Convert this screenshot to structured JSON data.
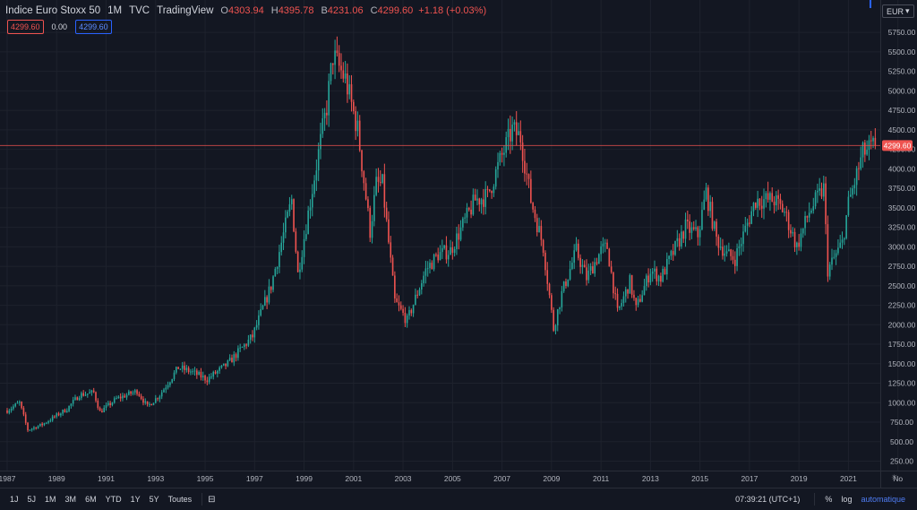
{
  "legend": {
    "symbol": "Indice Euro Stoxx 50",
    "interval": "1M",
    "exchange": "TVC",
    "source": "TradingView",
    "open_label": "O",
    "open": "4303.94",
    "high_label": "H",
    "high": "4395.78",
    "low_label": "B",
    "low": "4231.06",
    "close_label": "C",
    "close": "4299.60",
    "change": "+1.18 (+0.03%)"
  },
  "badges": {
    "bid": "4299.60",
    "spread": "0.00",
    "ask": "4299.60"
  },
  "currency": "EUR",
  "currency_arrow": "▾",
  "price_axis": {
    "labels": [
      "5750.00",
      "5500.00",
      "5250.00",
      "5000.00",
      "4750.00",
      "4500.00",
      "4250.00",
      "4000.00",
      "3750.00",
      "3500.00",
      "3250.00",
      "3000.00",
      "2750.00",
      "2500.00",
      "2250.00",
      "2000.00",
      "1750.00",
      "1500.00",
      "1250.00",
      "1000.00",
      "750.00",
      "500.00",
      "250.00"
    ],
    "last_price_label": "4299.60"
  },
  "time_axis": {
    "labels": [
      "1987",
      "1989",
      "1991",
      "1993",
      "1995",
      "1997",
      "1999",
      "2001",
      "2003",
      "2005",
      "2007",
      "2009",
      "2011",
      "2013",
      "2015",
      "2017",
      "2019",
      "2021",
      "No"
    ]
  },
  "bottom_bar": {
    "ranges": [
      "1J",
      "5J",
      "1M",
      "3M",
      "6M",
      "YTD",
      "1Y",
      "5Y",
      "Toutes"
    ],
    "calendar_icon": "⊟",
    "time": "07:39:21 (UTC+1)",
    "percent": "%",
    "log": "log",
    "auto": "automatique"
  },
  "settings_icon": "☼",
  "colors": {
    "background": "#131722",
    "up": "#26a69a",
    "down": "#ef5350",
    "grid": "#1e222d",
    "accent": "#2962ff"
  },
  "chart_data": {
    "type": "candlestick",
    "interval": "1M",
    "ylim": [
      0,
      5900
    ],
    "xlim": [
      "1987-01",
      "2022-09"
    ],
    "last_price": 4299.6,
    "grid": true,
    "anchors": [
      [
        "1987-01",
        900
      ],
      [
        "1987-07",
        1000
      ],
      [
        "1987-11",
        650
      ],
      [
        "1988-06",
        720
      ],
      [
        "1989-06",
        920
      ],
      [
        "1989-12",
        1100
      ],
      [
        "1990-07",
        1130
      ],
      [
        "1990-10",
        880
      ],
      [
        "1991-06",
        1050
      ],
      [
        "1992-04",
        1150
      ],
      [
        "1992-09",
        950
      ],
      [
        "1993-03",
        1100
      ],
      [
        "1993-12",
        1450
      ],
      [
        "1994-06",
        1400
      ],
      [
        "1995-02",
        1300
      ],
      [
        "1995-12",
        1500
      ],
      [
        "1996-12",
        1850
      ],
      [
        "1997-09",
        2500
      ],
      [
        "1998-07",
        3600
      ],
      [
        "1998-10",
        2650
      ],
      [
        "1999-06",
        3900
      ],
      [
        "1999-12",
        4800
      ],
      [
        "2000-03",
        5450
      ],
      [
        "2000-09",
        5150
      ],
      [
        "2001-03",
        4500
      ],
      [
        "2001-09",
        3200
      ],
      [
        "2001-12",
        3800
      ],
      [
        "2002-03",
        3800
      ],
      [
        "2002-09",
        2300
      ],
      [
        "2003-03",
        2050
      ],
      [
        "2003-12",
        2700
      ],
      [
        "2004-06",
        2900
      ],
      [
        "2004-12",
        2950
      ],
      [
        "2005-12",
        3600
      ],
      [
        "2006-06",
        3650
      ],
      [
        "2006-12",
        4100
      ],
      [
        "2007-06",
        4500
      ],
      [
        "2007-10",
        4400
      ],
      [
        "2008-03",
        3600
      ],
      [
        "2008-09",
        3000
      ],
      [
        "2009-02",
        1950
      ],
      [
        "2009-06",
        2400
      ],
      [
        "2010-01",
        2950
      ],
      [
        "2010-06",
        2600
      ],
      [
        "2011-01",
        2950
      ],
      [
        "2011-04",
        3000
      ],
      [
        "2011-09",
        2150
      ],
      [
        "2012-03",
        2550
      ],
      [
        "2012-06",
        2200
      ],
      [
        "2013-01",
        2700
      ],
      [
        "2013-06",
        2600
      ],
      [
        "2014-06",
        3250
      ],
      [
        "2014-12",
        3150
      ],
      [
        "2015-04",
        3700
      ],
      [
        "2015-09",
        3100
      ],
      [
        "2016-02",
        2900
      ],
      [
        "2016-06",
        2850
      ],
      [
        "2017-04",
        3600
      ],
      [
        "2018-01",
        3600
      ],
      [
        "2018-06",
        3450
      ],
      [
        "2018-12",
        3000
      ],
      [
        "2019-06",
        3450
      ],
      [
        "2020-01",
        3750
      ],
      [
        "2020-03",
        2700
      ],
      [
        "2020-10",
        3050
      ],
      [
        "2021-01",
        3550
      ],
      [
        "2021-08",
        4200
      ],
      [
        "2022-02",
        4300
      ]
    ]
  }
}
